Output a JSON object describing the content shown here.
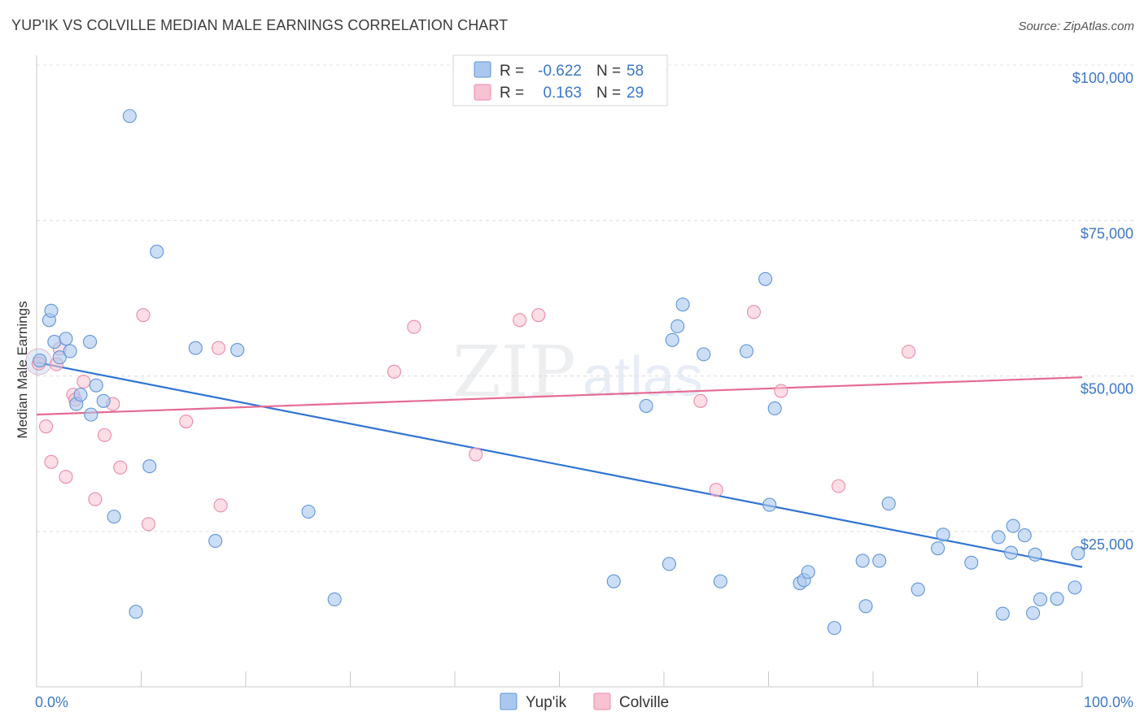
{
  "header": {
    "title": "YUP'IK VS COLVILLE MEDIAN MALE EARNINGS CORRELATION CHART",
    "source": "Source: ZipAtlas.com"
  },
  "colors": {
    "yupik_fill": "#aac8ef",
    "yupik_stroke": "#5f95d8",
    "yupik_line": "#3174d3",
    "colville_fill": "#f7c2d2",
    "colville_stroke": "#ec8aa8",
    "colville_line": "#e56b93",
    "axis_text": "#3b78c8"
  },
  "legend": {
    "rows": [
      {
        "r_label": "R =",
        "r_value": "-0.622",
        "n_label": "N =",
        "n_value": "58"
      },
      {
        "r_label": "R =",
        "r_value": "0.163",
        "n_label": "N =",
        "n_value": "29"
      }
    ]
  },
  "watermark": {
    "zip": "ZIP",
    "atlas": "atlas"
  },
  "chart_data": {
    "type": "scatter",
    "title": "YUP'IK VS COLVILLE MEDIAN MALE EARNINGS CORRELATION CHART",
    "xlabel": "",
    "ylabel": "Median Male Earnings",
    "xlim": [
      0,
      100
    ],
    "ylim": [
      0,
      105000
    ],
    "x_tick_labels": [
      "0.0%",
      "100.0%"
    ],
    "y_ticks": [
      25000,
      50000,
      75000,
      100000
    ],
    "y_tick_labels": [
      "$25,000",
      "$50,000",
      "$75,000",
      "$100,000"
    ],
    "grid": true,
    "legend_position": "bottom-center",
    "series": [
      {
        "name": "Yup'ik",
        "points": [
          [
            0.3,
            52500
          ],
          [
            1.2,
            59000
          ],
          [
            1.4,
            60500
          ],
          [
            1.7,
            55500
          ],
          [
            2.2,
            53000
          ],
          [
            2.8,
            56000
          ],
          [
            3.2,
            54000
          ],
          [
            3.8,
            45500
          ],
          [
            4.2,
            47000
          ],
          [
            5.1,
            55500
          ],
          [
            5.2,
            43800
          ],
          [
            5.7,
            48500
          ],
          [
            6.4,
            46000
          ],
          [
            7.4,
            27400
          ],
          [
            8.9,
            91800
          ],
          [
            9.5,
            12100
          ],
          [
            10.8,
            35500
          ],
          [
            11.5,
            70000
          ],
          [
            15.2,
            54500
          ],
          [
            17.1,
            23500
          ],
          [
            19.2,
            54200
          ],
          [
            26.0,
            28200
          ],
          [
            28.5,
            14100
          ],
          [
            55.2,
            17000
          ],
          [
            58.3,
            45200
          ],
          [
            60.5,
            19800
          ],
          [
            60.8,
            55800
          ],
          [
            61.3,
            58000
          ],
          [
            61.8,
            61500
          ],
          [
            63.8,
            53500
          ],
          [
            65.4,
            17000
          ],
          [
            67.9,
            54000
          ],
          [
            69.7,
            65600
          ],
          [
            70.1,
            29300
          ],
          [
            70.6,
            44800
          ],
          [
            73.0,
            16700
          ],
          [
            73.4,
            17200
          ],
          [
            73.8,
            18500
          ],
          [
            76.3,
            9500
          ],
          [
            79.0,
            20300
          ],
          [
            79.3,
            13000
          ],
          [
            80.6,
            20300
          ],
          [
            81.5,
            29500
          ],
          [
            84.3,
            15700
          ],
          [
            86.2,
            22300
          ],
          [
            86.7,
            24500
          ],
          [
            89.4,
            20000
          ],
          [
            92.0,
            24100
          ],
          [
            92.4,
            11800
          ],
          [
            93.2,
            21600
          ],
          [
            93.4,
            25900
          ],
          [
            94.5,
            24400
          ],
          [
            95.3,
            11900
          ],
          [
            95.5,
            21300
          ],
          [
            96.0,
            14100
          ],
          [
            97.6,
            14200
          ],
          [
            99.3,
            16000
          ],
          [
            99.6,
            21500
          ]
        ]
      },
      {
        "name": "Colville",
        "points": [
          [
            0.2,
            52000
          ],
          [
            0.9,
            41900
          ],
          [
            1.4,
            36200
          ],
          [
            1.9,
            51900
          ],
          [
            2.2,
            54400
          ],
          [
            2.8,
            33800
          ],
          [
            3.5,
            47000
          ],
          [
            3.7,
            46200
          ],
          [
            4.5,
            49100
          ],
          [
            5.6,
            30200
          ],
          [
            6.5,
            40500
          ],
          [
            7.3,
            45500
          ],
          [
            8.0,
            35300
          ],
          [
            10.2,
            59800
          ],
          [
            10.7,
            26200
          ],
          [
            14.3,
            42700
          ],
          [
            17.4,
            54500
          ],
          [
            17.6,
            29200
          ],
          [
            34.2,
            50700
          ],
          [
            36.1,
            57900
          ],
          [
            42.0,
            37400
          ],
          [
            46.2,
            59000
          ],
          [
            48.0,
            59800
          ],
          [
            63.5,
            46000
          ],
          [
            65.0,
            31700
          ],
          [
            68.6,
            60300
          ],
          [
            71.2,
            47600
          ],
          [
            76.7,
            32300
          ],
          [
            83.4,
            53900
          ]
        ]
      }
    ],
    "trend_lines": [
      {
        "name": "Yup'ik",
        "x": [
          0,
          100
        ],
        "y": [
          52200,
          19300
        ]
      },
      {
        "name": "Colville",
        "x": [
          0,
          100
        ],
        "y": [
          43800,
          49800
        ]
      }
    ]
  }
}
